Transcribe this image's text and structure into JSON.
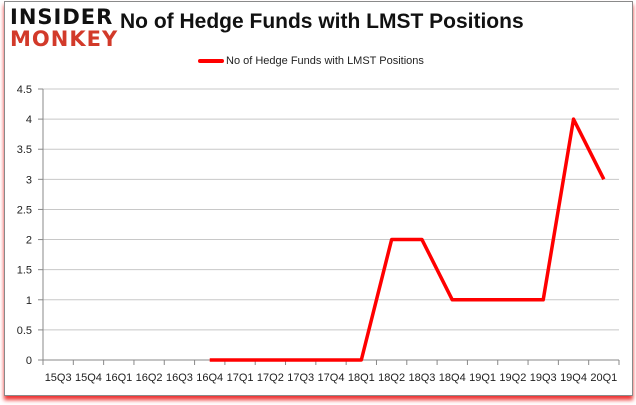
{
  "logo": {
    "line1": "INSIDER",
    "line2": "MONKEY"
  },
  "colors": {
    "line": "#ff0000",
    "grid": "#c8c8c8"
  },
  "chart_data": {
    "type": "line",
    "title": "No of Hedge Funds with LMST Positions",
    "xlabel": "",
    "ylabel": "",
    "categories": [
      "15Q3",
      "15Q4",
      "16Q1",
      "16Q2",
      "16Q3",
      "16Q4",
      "17Q1",
      "17Q2",
      "17Q3",
      "17Q4",
      "18Q1",
      "18Q2",
      "18Q3",
      "18Q4",
      "19Q1",
      "19Q2",
      "19Q3",
      "19Q4",
      "20Q1"
    ],
    "series": [
      {
        "name": "No of Hedge Funds with LMST Positions",
        "values": [
          null,
          null,
          null,
          null,
          null,
          0,
          0,
          0,
          0,
          0,
          0,
          2,
          2,
          1,
          1,
          1,
          1,
          4,
          3
        ]
      }
    ],
    "ylim": [
      0,
      4.5
    ],
    "yticks": [
      "0",
      "0.5",
      "1",
      "1.5",
      "2",
      "2.5",
      "3",
      "3.5",
      "4",
      "4.5"
    ],
    "grid": true,
    "legend": "top-center"
  }
}
